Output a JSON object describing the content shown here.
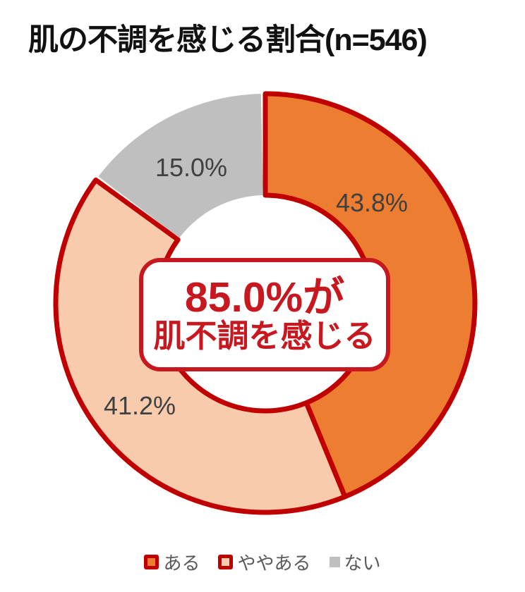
{
  "title": "肌の不調を感じる割合(n=546)",
  "center_label": {
    "line1": "85.0%が",
    "line2": "肌不調を感じる"
  },
  "chart_data": {
    "type": "pie",
    "variant": "doughnut",
    "title": "肌の不調を感じる割合(n=546)",
    "sample_size_text": "n=546",
    "start_angle_deg": 0,
    "direction": "clockwise",
    "segments": [
      {
        "label": "ある",
        "value": 43.8,
        "display": "43.8%",
        "color": "#ED7D31",
        "border_color": "#C00000"
      },
      {
        "label": "ややある",
        "value": 41.2,
        "display": "41.2%",
        "color": "#F8CBAD",
        "border_color": "#C00000"
      },
      {
        "label": "ない",
        "value": 15.0,
        "display": "15.0%",
        "color": "#BFBFBF",
        "border_color": null
      }
    ],
    "center_annotation": "85.0%が肌不調を感じる",
    "legend_position": "bottom"
  },
  "colors": {
    "slice_border": "#C00000",
    "center_accent": "#C8181F",
    "slice_label_text": "#404040",
    "legend_text": "#595959",
    "title_text": "#111111"
  }
}
